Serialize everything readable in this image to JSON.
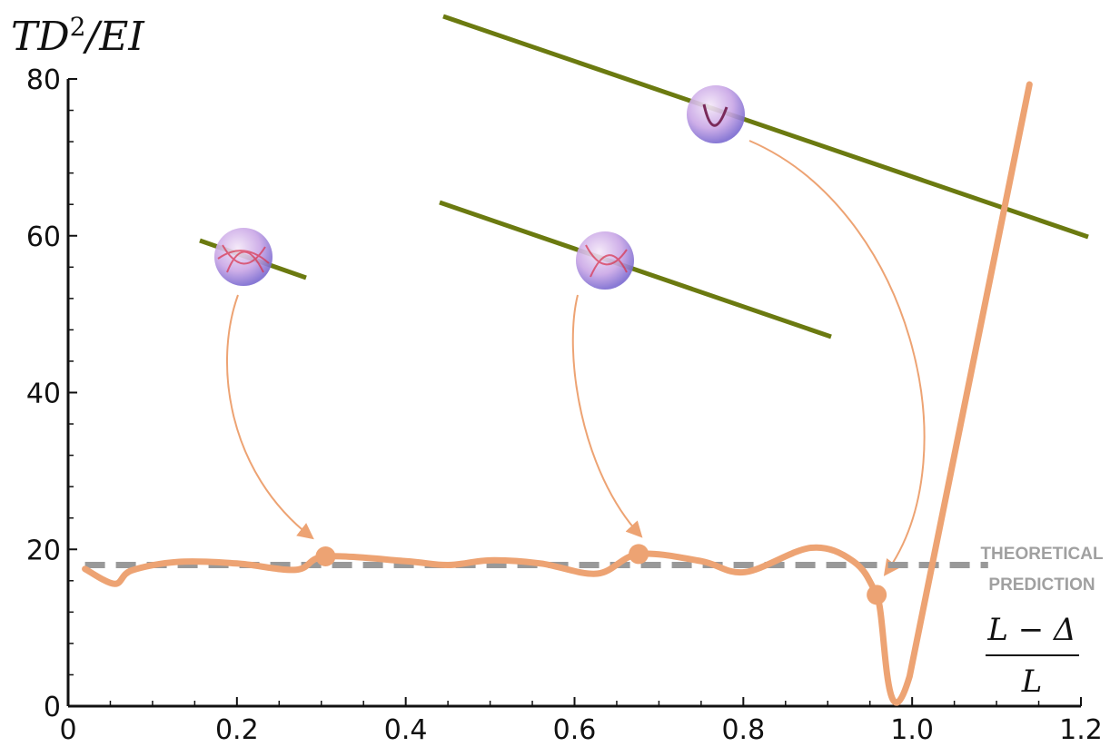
{
  "chart_data": {
    "type": "line",
    "y_label": [
      "TD",
      "2",
      "/EI"
    ],
    "x_label": {
      "numerator": "L − Δ",
      "denominator": "L"
    },
    "annotation": [
      "THEORETICAL",
      "PREDICTION"
    ],
    "xlim": [
      0,
      1.2
    ],
    "ylim": [
      0,
      80
    ],
    "xticks": [
      0,
      0.2,
      0.4,
      0.6,
      0.8,
      {
        "value": 1,
        "label": "1.0"
      },
      1.2
    ],
    "yticks": [
      0,
      20,
      40,
      60,
      80
    ],
    "xminorticks": [
      0.05,
      0.1,
      0.15,
      0.25,
      0.3,
      0.35,
      0.45,
      0.5,
      0.55,
      0.65,
      0.7,
      0.75,
      0.85,
      0.9,
      0.95,
      1.05,
      1.1,
      1.15
    ],
    "yminorticks": [
      4,
      8,
      12,
      16,
      24,
      28,
      32,
      36,
      44,
      48,
      52,
      56,
      64,
      68,
      72,
      76
    ],
    "series": [
      {
        "color": "#eda373",
        "x": [
          0.02,
          0.055,
          0.075,
          0.13,
          0.2,
          0.27,
          0.305,
          0.4,
          0.45,
          0.5,
          0.56,
          0.627,
          0.676,
          0.75,
          0.802,
          0.88,
          0.93,
          0.958,
          0.997,
          1.139
        ],
        "values": [
          17.5,
          15.6,
          17.3,
          18.4,
          18.2,
          17.4,
          19.1,
          18.5,
          18,
          18.6,
          18.2,
          16.9,
          19.4,
          18.5,
          17.1,
          20.2,
          18.5,
          14.2,
          3.8,
          79.3
        ]
      }
    ],
    "markers": {
      "color": "#eda373",
      "x": [
        0.305,
        0.676,
        0.958
      ],
      "values": [
        19.1,
        19.4,
        14.2
      ]
    },
    "prediction": {
      "color": "#999999",
      "value": 18,
      "x": [
        0.02,
        1.09
      ]
    }
  }
}
